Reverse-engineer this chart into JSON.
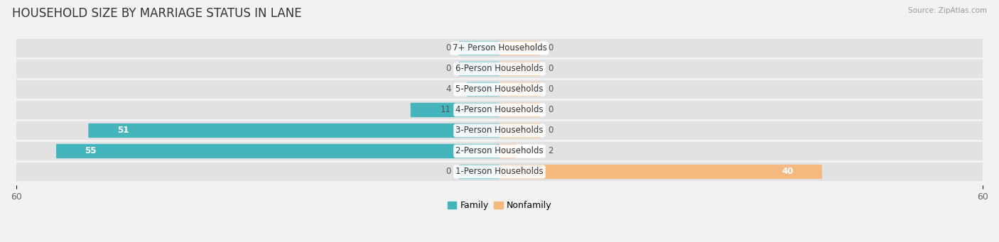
{
  "title": "HOUSEHOLD SIZE BY MARRIAGE STATUS IN LANE",
  "source": "Source: ZipAtlas.com",
  "categories": [
    "1-Person Households",
    "2-Person Households",
    "3-Person Households",
    "4-Person Households",
    "5-Person Households",
    "6-Person Households",
    "7+ Person Households"
  ],
  "family": [
    0,
    55,
    51,
    11,
    4,
    0,
    0
  ],
  "nonfamily": [
    40,
    2,
    0,
    0,
    0,
    0,
    0
  ],
  "family_color": "#45b5bd",
  "nonfamily_color": "#f5b87e",
  "xlim": 60,
  "background_color": "#f2f2f2",
  "bar_bg_color": "#e2e2e2",
  "title_fontsize": 12,
  "label_fontsize": 8.5,
  "tick_fontsize": 9,
  "legend_fontsize": 9,
  "stub_size": 5
}
